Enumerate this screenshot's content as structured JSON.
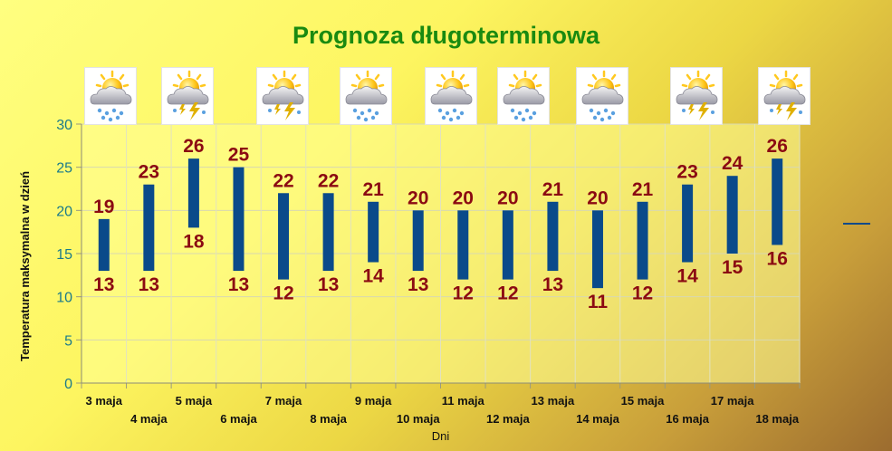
{
  "chart_data": {
    "type": "bar",
    "title": "Prognoza długoterminowa",
    "xlabel": "Dni",
    "ylabel": "Temperatura maksymalna w dzień",
    "ylim": [
      0,
      30
    ],
    "yticks": [
      0,
      5,
      10,
      15,
      20,
      25,
      30
    ],
    "grid": true,
    "legend": "right",
    "categories": [
      "3 maja",
      "4 maja",
      "5 maja",
      "6 maja",
      "7 maja",
      "8 maja",
      "9 maja",
      "10 maja",
      "11 maja",
      "12 maja",
      "13 maja",
      "14 maja",
      "15 maja",
      "16 maja",
      "17 maja",
      "18 maja"
    ],
    "series": [
      {
        "values_high": [
          19,
          23,
          26,
          25,
          22,
          22,
          21,
          20,
          20,
          20,
          21,
          20,
          21,
          23,
          24,
          26
        ],
        "values_low": [
          13,
          13,
          18,
          13,
          12,
          13,
          14,
          13,
          12,
          12,
          13,
          11,
          12,
          14,
          15,
          16
        ]
      }
    ],
    "colors": {
      "bar": "#0a4a8a",
      "label": "#8b0a12",
      "axis_text": "#1a7a8a",
      "title": "#1a8a10",
      "legend_line": "#0a4a8a"
    }
  },
  "weather_icons": [
    {
      "name": "sun-cloud-rain-icon",
      "kind": "rain"
    },
    {
      "name": "sun-cloud-storm-icon",
      "kind": "storm"
    },
    {
      "name": "sun-cloud-storm-icon",
      "kind": "storm"
    },
    {
      "name": "sun-cloud-rain-icon",
      "kind": "rain"
    },
    {
      "name": "sun-cloud-rain-icon",
      "kind": "rain"
    },
    {
      "name": "sun-cloud-rain-icon",
      "kind": "rain"
    },
    {
      "name": "sun-cloud-rain-icon",
      "kind": "rain"
    },
    {
      "name": "sun-cloud-storm-icon",
      "kind": "storm"
    },
    {
      "name": "sun-cloud-storm-icon",
      "kind": "storm"
    }
  ]
}
